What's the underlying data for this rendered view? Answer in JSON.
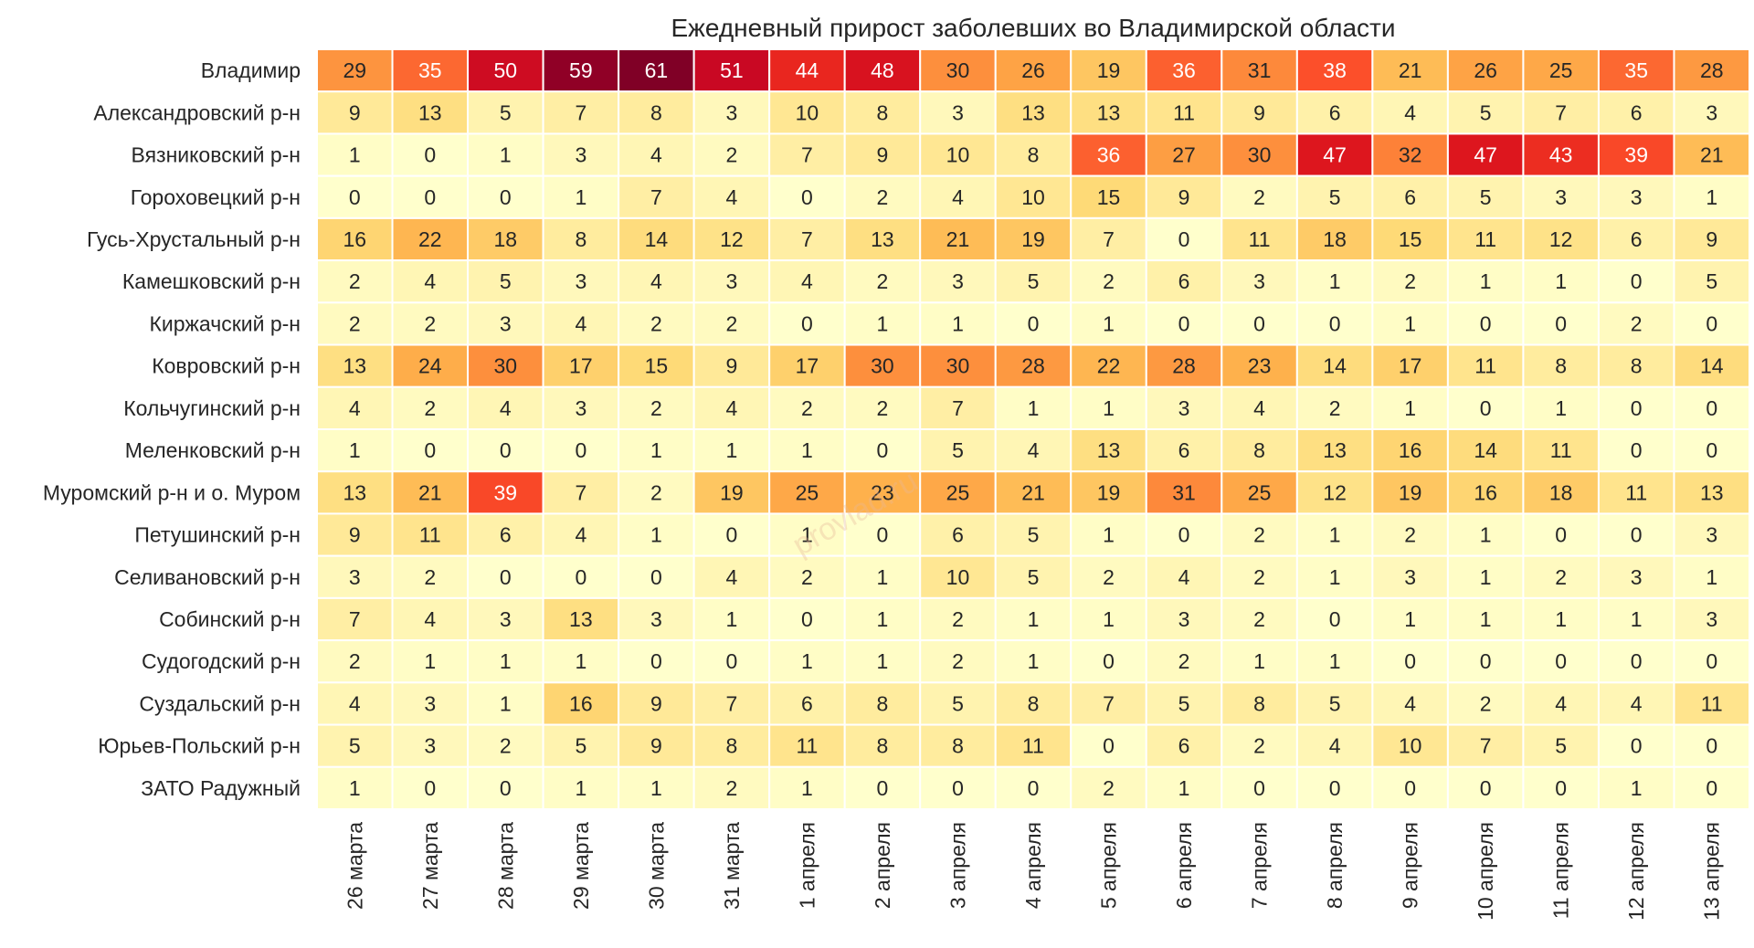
{
  "chart_data": {
    "type": "heatmap",
    "title": "Ежедневный прирост заболевших во Владимирской области",
    "watermark": "provlad.ru",
    "columns": [
      "26 марта",
      "27 марта",
      "28 марта",
      "29 марта",
      "30 марта",
      "31 марта",
      "1 апреля",
      "2 апреля",
      "3 апреля",
      "4 апреля",
      "5 апреля",
      "6 апреля",
      "7 апреля",
      "8 апреля",
      "9 апреля",
      "10 апреля",
      "11 апреля",
      "12 апреля",
      "13 апреля"
    ],
    "rows": [
      "Владимир",
      "Александровский р-н",
      "Вязниковский р-н",
      "Гороховецкий р-н",
      "Гусь-Хрустальный р-н",
      "Камешковский р-н",
      "Киржачский р-н",
      "Ковровский р-н",
      "Кольчугинский р-н",
      "Меленковский р-н",
      "Муромский р-н и о. Муром",
      "Петушинский р-н",
      "Селивановский р-н",
      "Собинский р-н",
      "Судогодский р-н",
      "Суздальский р-н",
      "Юрьев-Польский р-н",
      "ЗАТО Радужный"
    ],
    "values": [
      [
        29,
        35,
        50,
        59,
        61,
        51,
        44,
        48,
        30,
        26,
        19,
        36,
        31,
        38,
        21,
        26,
        25,
        35,
        28
      ],
      [
        9,
        13,
        5,
        7,
        8,
        3,
        10,
        8,
        3,
        13,
        13,
        11,
        9,
        6,
        4,
        5,
        7,
        6,
        3
      ],
      [
        1,
        0,
        1,
        3,
        4,
        2,
        7,
        9,
        10,
        8,
        36,
        27,
        30,
        47,
        32,
        47,
        43,
        39,
        21
      ],
      [
        0,
        0,
        0,
        1,
        7,
        4,
        0,
        2,
        4,
        10,
        15,
        9,
        2,
        5,
        6,
        5,
        3,
        3,
        1
      ],
      [
        16,
        22,
        18,
        8,
        14,
        12,
        7,
        13,
        21,
        19,
        7,
        0,
        11,
        18,
        15,
        11,
        12,
        6,
        9
      ],
      [
        2,
        4,
        5,
        3,
        4,
        3,
        4,
        2,
        3,
        5,
        2,
        6,
        3,
        1,
        2,
        1,
        1,
        0,
        5
      ],
      [
        2,
        2,
        3,
        4,
        2,
        2,
        0,
        1,
        1,
        0,
        1,
        0,
        0,
        0,
        1,
        0,
        0,
        2,
        0
      ],
      [
        13,
        24,
        30,
        17,
        15,
        9,
        17,
        30,
        30,
        28,
        22,
        28,
        23,
        14,
        17,
        11,
        8,
        8,
        14
      ],
      [
        4,
        2,
        4,
        3,
        2,
        4,
        2,
        2,
        7,
        1,
        1,
        3,
        4,
        2,
        1,
        0,
        1,
        0,
        0
      ],
      [
        1,
        0,
        0,
        0,
        1,
        1,
        1,
        0,
        5,
        4,
        13,
        6,
        8,
        13,
        16,
        14,
        11,
        0,
        0
      ],
      [
        13,
        21,
        39,
        7,
        2,
        19,
        25,
        23,
        25,
        21,
        19,
        31,
        25,
        12,
        19,
        16,
        18,
        11,
        13
      ],
      [
        9,
        11,
        6,
        4,
        1,
        0,
        1,
        0,
        6,
        5,
        1,
        0,
        2,
        1,
        2,
        1,
        0,
        0,
        3
      ],
      [
        3,
        2,
        0,
        0,
        0,
        4,
        2,
        1,
        10,
        5,
        2,
        4,
        2,
        1,
        3,
        1,
        2,
        3,
        1
      ],
      [
        7,
        4,
        3,
        13,
        3,
        1,
        0,
        1,
        2,
        1,
        1,
        3,
        2,
        0,
        1,
        1,
        1,
        1,
        3
      ],
      [
        2,
        1,
        1,
        1,
        0,
        0,
        1,
        1,
        2,
        1,
        0,
        2,
        1,
        1,
        0,
        0,
        0,
        0,
        0
      ],
      [
        4,
        3,
        1,
        16,
        9,
        7,
        6,
        8,
        5,
        8,
        7,
        5,
        8,
        5,
        4,
        2,
        4,
        4,
        11
      ],
      [
        5,
        3,
        2,
        5,
        9,
        8,
        11,
        8,
        8,
        11,
        0,
        6,
        2,
        4,
        10,
        7,
        5,
        0,
        0
      ],
      [
        1,
        0,
        0,
        1,
        1,
        2,
        1,
        0,
        0,
        0,
        2,
        1,
        0,
        0,
        0,
        0,
        0,
        1,
        0
      ]
    ],
    "value_range": [
      0,
      61
    ],
    "colormap": "YlOrRd"
  }
}
